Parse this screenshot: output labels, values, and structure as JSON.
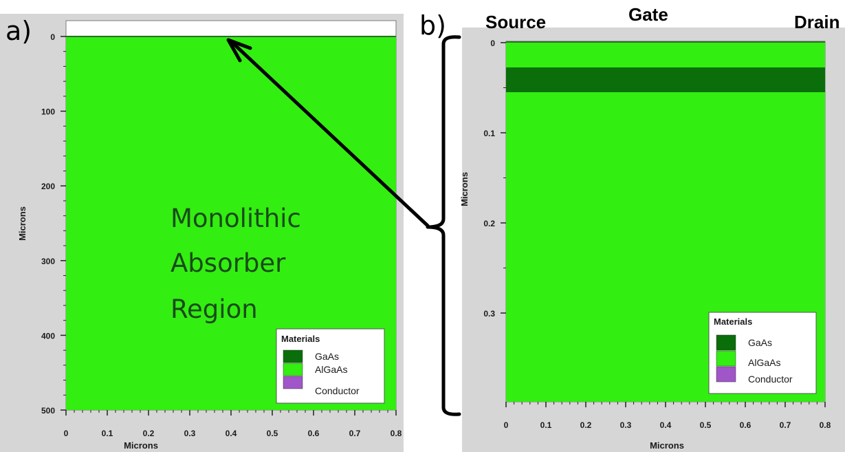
{
  "colors": {
    "gaas": "#0a6e0a",
    "algaas": "#33ee11",
    "conductor": "#a056c8",
    "panel_bg": "#d6d6d6",
    "annotation": "#000000"
  },
  "panel_a": {
    "label": "a)",
    "xlabel": "Microns",
    "ylabel": "Microns",
    "xticks": [
      "0",
      "0.1",
      "0.2",
      "0.3",
      "0.4",
      "0.5",
      "0.6",
      "0.7",
      "0.8"
    ],
    "yticks": [
      "0",
      "100",
      "200",
      "300",
      "400",
      "500"
    ],
    "xlim": [
      0,
      0.8
    ],
    "ylim": [
      0,
      500
    ],
    "region_text": [
      "Monolithic",
      "Absorber",
      "Region"
    ],
    "legend": {
      "title": "Materials",
      "items": [
        "GaAs",
        "AlGaAs",
        "Conductor"
      ]
    }
  },
  "panel_b": {
    "label": "b)",
    "xlabel": "Microns",
    "ylabel": "Microns",
    "xticks": [
      "0",
      "0.1",
      "0.2",
      "0.3",
      "0.4",
      "0.5",
      "0.6",
      "0.7",
      "0.8"
    ],
    "yticks": [
      "0",
      "0.1",
      "0.2",
      "0.3"
    ],
    "xlim": [
      0,
      0.8
    ],
    "ylim": [
      0,
      0.39
    ],
    "gaas_layer": [
      0.028,
      0.055
    ],
    "top_labels": {
      "source": "Source",
      "gate": "Gate",
      "drain": "Drain"
    },
    "legend": {
      "title": "Materials",
      "items": [
        "GaAs",
        "AlGaAs",
        "Conductor"
      ]
    }
  }
}
